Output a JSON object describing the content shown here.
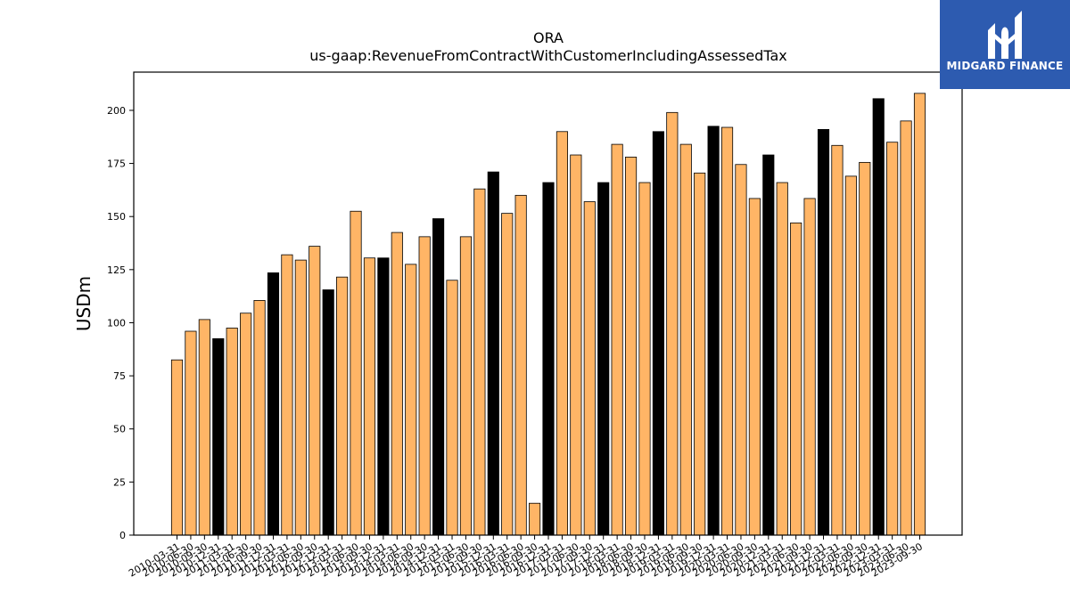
{
  "brand": {
    "name": "MIDGARD FINANCE",
    "bg_color": "#2d5bb0",
    "logo_icon": "midgard-logo-icon"
  },
  "chart_data": {
    "type": "bar",
    "title": "ORA",
    "subtitle": "us-gaap:RevenueFromContractWithCustomerIncludingAssessedTax",
    "xlabel": "",
    "ylabel": "USDm",
    "ylim": [
      0,
      218
    ],
    "yticks": [
      0,
      25,
      50,
      75,
      100,
      125,
      150,
      175,
      200
    ],
    "grid": false,
    "colors": {
      "default": "#ffb566",
      "highlight": "#000000",
      "edge": "#000000"
    },
    "categories": [
      "2010-03-31",
      "2010-06-30",
      "2010-09-30",
      "2010-12-31",
      "2011-03-31",
      "2011-06-30",
      "2011-09-30",
      "2011-12-31",
      "2012-03-31",
      "2012-06-30",
      "2012-09-30",
      "2012-12-31",
      "2013-03-31",
      "2013-06-30",
      "2013-09-30",
      "2013-12-31",
      "2014-03-31",
      "2014-06-30",
      "2014-09-30",
      "2014-12-31",
      "2015-03-31",
      "2015-06-30",
      "2015-09-30",
      "2015-12-31",
      "2016-03-31",
      "2016-06-30",
      "2016-09-30",
      "2016-12-31",
      "2017-03-31",
      "2017-06-30",
      "2017-09-30",
      "2017-12-31",
      "2018-03-31",
      "2018-06-30",
      "2018-09-30",
      "2018-12-31",
      "2019-03-31",
      "2019-06-30",
      "2019-09-30",
      "2019-12-31",
      "2020-03-31",
      "2020-06-30",
      "2020-09-30",
      "2020-12-31",
      "2021-03-31",
      "2021-06-30",
      "2021-09-30",
      "2021-12-31",
      "2022-03-31",
      "2022-06-30",
      "2022-09-30",
      "2022-12-31",
      "2023-03-31",
      "2023-06-30",
      "2023-09-30"
    ],
    "values": [
      82.5,
      96,
      101.5,
      92.5,
      97.5,
      104.5,
      110.5,
      123.5,
      132,
      129.5,
      136,
      115.5,
      121.5,
      152.5,
      130.5,
      130.5,
      142.5,
      127.5,
      140.5,
      149,
      120,
      140.5,
      163,
      171,
      151.5,
      160,
      15,
      166,
      190,
      179,
      157,
      166,
      184,
      178,
      166,
      190,
      199,
      184,
      170.5,
      192.5,
      192,
      174.5,
      158.5,
      179,
      166,
      147,
      158.5,
      191,
      183.5,
      169,
      175.5,
      205.5,
      185,
      195,
      208
    ],
    "highlight_categories": [
      "2010-12-31",
      "2011-12-31",
      "2012-12-31",
      "2013-12-31",
      "2014-12-31",
      "2015-12-31",
      "2016-12-31",
      "2017-12-31",
      "2018-12-31",
      "2019-12-31",
      "2020-12-31",
      "2021-12-31",
      "2022-12-31"
    ]
  }
}
